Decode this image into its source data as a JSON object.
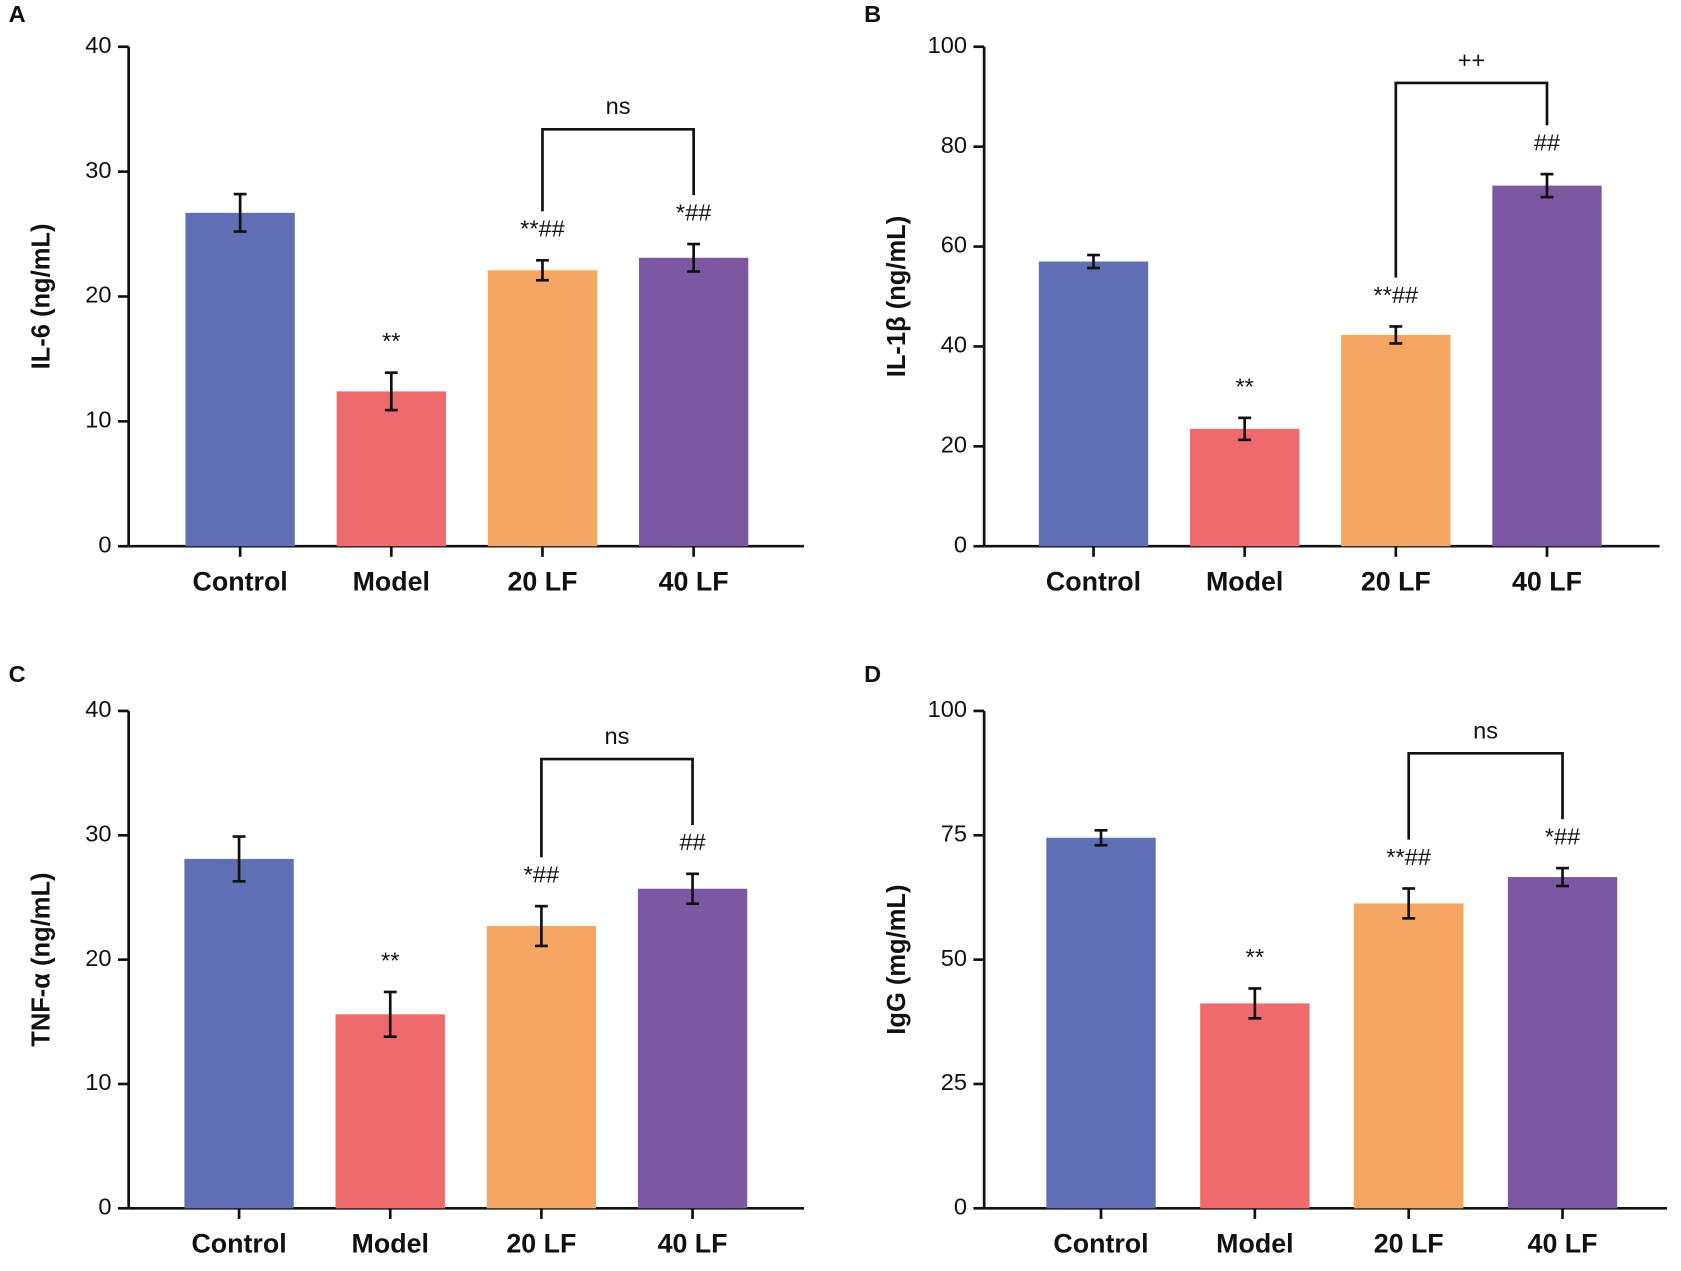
{
  "chart_data": [
    {
      "type": "bar",
      "panel": "A",
      "ylabel": "IL-6 (ng/mL)",
      "categories": [
        "Control",
        "Model",
        "20 LF",
        "40 LF"
      ],
      "values": [
        26.7,
        12.4,
        22.1,
        23.1
      ],
      "errors": [
        1.5,
        1.5,
        0.8,
        1.1
      ],
      "annotations": [
        null,
        "**",
        "**##",
        "*##"
      ],
      "bracket_label": "ns",
      "colors": [
        "#5e6fb4",
        "#ef6a6d",
        "#f5a662",
        "#7c58a3"
      ],
      "ylim": [
        0,
        40
      ],
      "yticks": [
        0,
        10,
        20,
        30,
        40
      ]
    },
    {
      "type": "bar",
      "panel": "B",
      "ylabel": "IL-1β (ng/mL)",
      "categories": [
        "Control",
        "Model",
        "20 LF",
        "40 LF"
      ],
      "values": [
        57,
        23.5,
        42.3,
        72.2
      ],
      "errors": [
        1.3,
        2.2,
        1.7,
        2.3
      ],
      "annotations": [
        null,
        "**",
        "**##",
        "##"
      ],
      "bracket_label": "++",
      "colors": [
        "#5e6fb4",
        "#ef6a6d",
        "#f5a662",
        "#7c58a3"
      ],
      "ylim": [
        0,
        100
      ],
      "yticks": [
        0,
        20,
        40,
        60,
        80,
        100
      ]
    },
    {
      "type": "bar",
      "panel": "C",
      "ylabel": "TNF-α (ng/mL)",
      "categories": [
        "Control",
        "Model",
        "20 LF",
        "40 LF"
      ],
      "values": [
        28.1,
        15.6,
        22.7,
        25.7
      ],
      "errors": [
        1.8,
        1.8,
        1.6,
        1.2
      ],
      "annotations": [
        null,
        "**",
        "*##",
        "##"
      ],
      "bracket_label": "ns",
      "colors": [
        "#5e6fb4",
        "#ef6a6d",
        "#f5a662",
        "#7c58a3"
      ],
      "ylim": [
        0,
        40
      ],
      "yticks": [
        0,
        10,
        20,
        30,
        40
      ]
    },
    {
      "type": "bar",
      "panel": "D",
      "ylabel": "IgG (mg/mL)",
      "categories": [
        "Control",
        "Model",
        "20 LF",
        "40 LF"
      ],
      "values": [
        74.5,
        41.2,
        61.3,
        66.6
      ],
      "errors": [
        1.5,
        3,
        3,
        1.8
      ],
      "annotations": [
        null,
        "**",
        "**##",
        "*##"
      ],
      "bracket_label": "ns",
      "colors": [
        "#5e6fb4",
        "#ef6a6d",
        "#f5a662",
        "#7c58a3"
      ],
      "ylim": [
        0,
        100
      ],
      "yticks": [
        0,
        25,
        50,
        75,
        100
      ]
    }
  ]
}
